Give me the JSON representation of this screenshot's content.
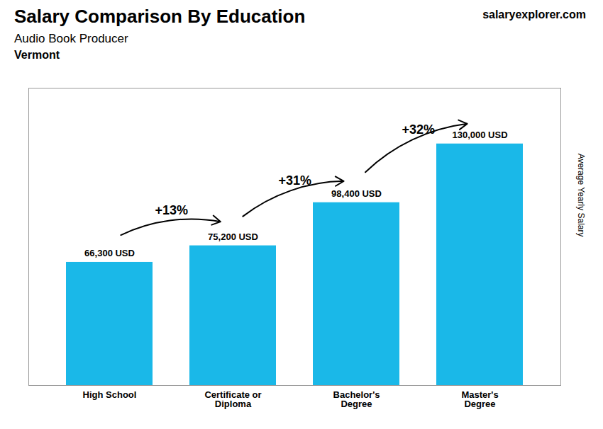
{
  "chart_data": {
    "type": "bar",
    "title": "Salary Comparison By Education",
    "subtitle": "Audio Book Producer",
    "ylabel": "Average Yearly Salary",
    "categories": [
      "High School",
      "Certificate or\nDiploma",
      "Bachelor's\nDegree",
      "Master's\nDegree"
    ],
    "values": [
      66300,
      75200,
      98400,
      130000
    ],
    "value_labels": [
      "66,300 USD",
      "75,200 USD",
      "98,400 USD",
      "130,000 USD"
    ],
    "data_labels": true,
    "color": "#1ab8e8",
    "ylim": [
      0,
      160000
    ],
    "yticks": [],
    "tick_labels": "x",
    "grid": false,
    "annotations": [
      {
        "text": "Vermont"
      },
      {
        "text": "salaryexplorer.com"
      },
      {
        "text": "+13%",
        "from": "High School",
        "to": "Certificate or\nDiploma"
      },
      {
        "text": "+31%",
        "from": "Certificate or\nDiploma",
        "to": "Bachelor's\nDegree"
      },
      {
        "text": "+32%",
        "from": "Bachelor's\nDegree",
        "to": "Master's\nDegree"
      }
    ]
  }
}
